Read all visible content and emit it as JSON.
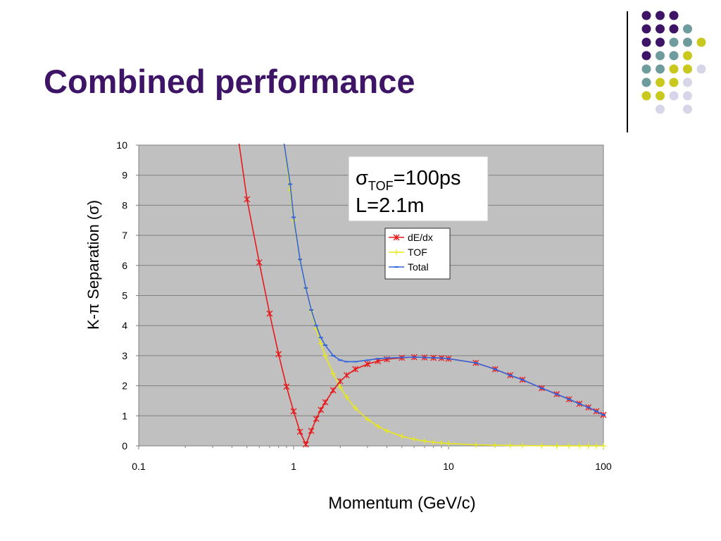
{
  "slide": {
    "title": "Combined performance"
  },
  "decor": {
    "dot_colors": [
      "#3d1466",
      "#6e9c9c",
      "#c8c81e",
      "#d6d6e8"
    ]
  },
  "chart_data": {
    "type": "line",
    "xlabel": "Momentum (GeV/c)",
    "ylabel": "K-π Separation (σ)",
    "x_scale": "log",
    "xlim": [
      0.1,
      100
    ],
    "ylim": [
      0,
      10
    ],
    "x_ticks": [
      "0.1",
      "1",
      "10",
      "100"
    ],
    "y_ticks": [
      "0",
      "1",
      "2",
      "3",
      "4",
      "5",
      "6",
      "7",
      "8",
      "9",
      "10"
    ],
    "grid": true,
    "plot_background": "#c0c0c0",
    "annotation": {
      "sigma": "σ",
      "subscript": "TOF",
      "line1_rest": "=100ps",
      "line2": "L=2.1m"
    },
    "legend_position": "upper-right",
    "series": [
      {
        "name": "dE/dx",
        "color": "#e8191b",
        "marker": "asterisk",
        "x": [
          0.44,
          0.5,
          0.6,
          0.7,
          0.8,
          0.9,
          1.0,
          1.1,
          1.2,
          1.3,
          1.4,
          1.5,
          1.6,
          1.8,
          2.0,
          2.2,
          2.5,
          3.0,
          3.5,
          4.0,
          5.0,
          6.0,
          7.0,
          8.0,
          9.0,
          10,
          15,
          20,
          25,
          30,
          40,
          50,
          60,
          70,
          80,
          90,
          100
        ],
        "y": [
          10.2,
          8.2,
          6.1,
          4.4,
          3.05,
          1.97,
          1.15,
          0.47,
          0.05,
          0.5,
          0.9,
          1.2,
          1.45,
          1.85,
          2.15,
          2.35,
          2.55,
          2.72,
          2.82,
          2.88,
          2.93,
          2.95,
          2.94,
          2.93,
          2.92,
          2.9,
          2.76,
          2.55,
          2.35,
          2.2,
          1.92,
          1.72,
          1.55,
          1.4,
          1.28,
          1.15,
          1.03
        ]
      },
      {
        "name": "TOF",
        "color": "#e8e81a",
        "marker": "plus",
        "x": [
          0.86,
          0.95,
          1.0,
          1.1,
          1.2,
          1.3,
          1.4,
          1.5,
          1.6,
          1.8,
          2.0,
          2.2,
          2.5,
          3.0,
          3.5,
          4.0,
          5.0,
          6.0,
          7.0,
          8.0,
          9.0,
          10,
          15,
          20,
          25,
          30,
          40,
          50,
          60,
          70,
          80,
          90,
          100
        ],
        "y": [
          10.2,
          8.5,
          7.5,
          6.2,
          5.25,
          4.5,
          3.9,
          3.4,
          3.0,
          2.4,
          1.95,
          1.62,
          1.26,
          0.88,
          0.65,
          0.5,
          0.32,
          0.22,
          0.16,
          0.12,
          0.1,
          0.08,
          0.036,
          0.02,
          0.013,
          0.009,
          0.005,
          0.003,
          0.002,
          0.0015,
          0.0012,
          0.001,
          0.0008
        ]
      },
      {
        "name": "Total",
        "color": "#3366dd",
        "marker": "dash",
        "x": [
          0.86,
          0.95,
          1.0,
          1.1,
          1.2,
          1.3,
          1.4,
          1.5,
          1.6,
          1.8,
          2.0,
          2.2,
          2.5,
          3.0,
          3.5,
          4.0,
          5.0,
          6.0,
          7.0,
          8.0,
          9.0,
          10,
          15,
          20,
          25,
          30,
          40,
          50,
          60,
          70,
          80,
          90,
          100
        ],
        "y": [
          10.2,
          8.7,
          7.6,
          6.2,
          5.25,
          4.52,
          4.0,
          3.6,
          3.35,
          3.0,
          2.85,
          2.8,
          2.8,
          2.85,
          2.9,
          2.92,
          2.94,
          2.95,
          2.94,
          2.93,
          2.92,
          2.9,
          2.76,
          2.55,
          2.35,
          2.2,
          1.92,
          1.72,
          1.55,
          1.4,
          1.28,
          1.15,
          1.03
        ]
      }
    ]
  }
}
